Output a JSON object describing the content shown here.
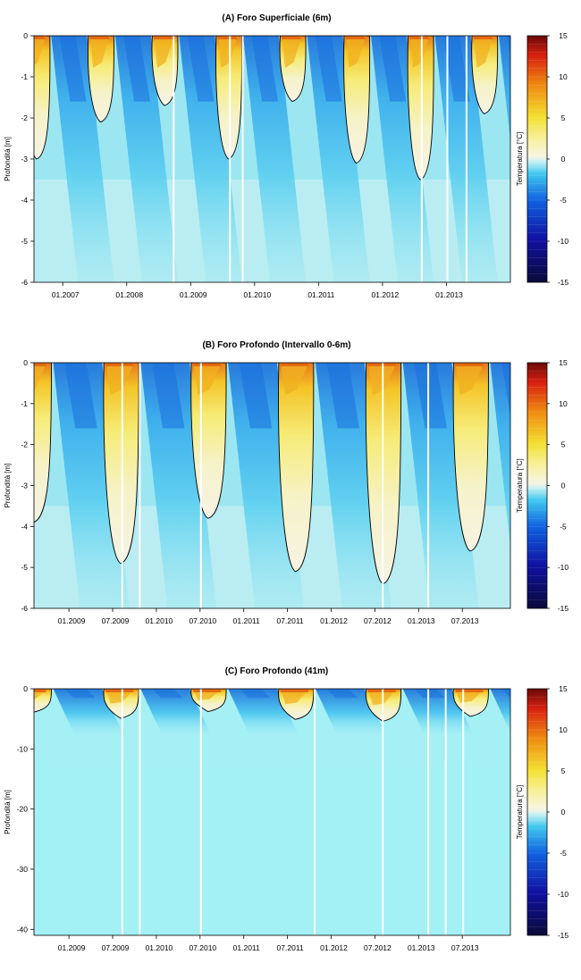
{
  "colorbar": {
    "label": "Temperatura [°C]",
    "ticks": [
      15,
      10,
      5,
      0,
      -5,
      -10,
      -15
    ],
    "min": -15,
    "max": 15,
    "step": 1
  },
  "chart_data": [
    {
      "type": "heatmap",
      "title": "(A) Foro Superficiale (6m)",
      "ylabel": "Profondità [m]",
      "xlabel": "",
      "ylim": [
        -6,
        0
      ],
      "xlim": [
        2006.55,
        2014.0
      ],
      "yticks": [
        "0",
        "-1",
        "-2",
        "-3",
        "-4",
        "-5",
        "-6"
      ],
      "ytick_values": [
        0,
        -1,
        -2,
        -3,
        -4,
        -5,
        -6
      ],
      "xticks": [
        "01.2007",
        "01.2008",
        "01.2009",
        "01.2010",
        "01.2011",
        "01.2012",
        "01.2013"
      ],
      "xtick_values": [
        2007.0,
        2008.0,
        2009.0,
        2010.0,
        2011.0,
        2012.0,
        2013.0
      ],
      "colorbar_label": "Temperatura [°C]",
      "colorbar_range": [
        -15,
        15
      ],
      "summer_zero_isotherm_max_depth_m": [
        {
          "summer": 2006,
          "depth": -3.0
        },
        {
          "summer": 2007,
          "depth": -2.1
        },
        {
          "summer": 2008,
          "depth": -1.7
        },
        {
          "summer": 2009,
          "depth": -3.0
        },
        {
          "summer": 2010,
          "depth": -1.6
        },
        {
          "summer": 2011,
          "depth": -3.1
        },
        {
          "summer": 2012,
          "depth": -3.5
        },
        {
          "summer": 2013,
          "depth": -1.9
        }
      ],
      "data_gaps": [
        2008.72,
        2009.6,
        2009.8,
        2012.6,
        2013.0,
        2013.3
      ]
    },
    {
      "type": "heatmap",
      "title": "(B) Foro Profondo (Intervallo 0-6m)",
      "ylabel": "Profondità [m]",
      "xlabel": "",
      "ylim": [
        -6,
        0
      ],
      "xlim": [
        2008.6,
        2014.05
      ],
      "yticks": [
        "0",
        "-1",
        "-2",
        "-3",
        "-4",
        "-5",
        "-6"
      ],
      "ytick_values": [
        0,
        -1,
        -2,
        -3,
        -4,
        -5,
        -6
      ],
      "xticks": [
        "01.2009",
        "07.2009",
        "01.2010",
        "07.2010",
        "01.2011",
        "07.2011",
        "01.2012",
        "07.2012",
        "01.2013",
        "07.2013"
      ],
      "xtick_values": [
        2009.0,
        2009.5,
        2010.0,
        2010.5,
        2011.0,
        2011.5,
        2012.0,
        2012.5,
        2013.0,
        2013.5
      ],
      "colorbar_label": "Temperatura [°C]",
      "colorbar_range": [
        -15,
        15
      ],
      "summer_zero_isotherm_max_depth_m": [
        {
          "summer": 2008,
          "depth": -3.9
        },
        {
          "summer": 2009,
          "depth": -4.9
        },
        {
          "summer": 2010,
          "depth": -3.8
        },
        {
          "summer": 2011,
          "depth": -5.1
        },
        {
          "summer": 2012,
          "depth": -5.4
        },
        {
          "summer": 2013,
          "depth": -4.6
        }
      ],
      "data_gaps": [
        2009.6,
        2009.8,
        2010.5,
        2012.58,
        2013.1
      ]
    },
    {
      "type": "heatmap",
      "title": "(C) Foro Profondo (41m)",
      "ylabel": "Profondità [m]",
      "xlabel": "",
      "ylim": [
        -41,
        0
      ],
      "xlim": [
        2008.6,
        2014.05
      ],
      "yticks": [
        "0",
        "-10",
        "-20",
        "-30",
        "-40"
      ],
      "ytick_values": [
        0,
        -10,
        -20,
        -30,
        -40
      ],
      "xticks": [
        "01.2009",
        "07.2009",
        "01.2010",
        "07.2010",
        "01.2011",
        "07.2011",
        "01.2012",
        "07.2012",
        "01.2013",
        "07.2013"
      ],
      "xtick_values": [
        2009.0,
        2009.5,
        2010.0,
        2010.5,
        2011.0,
        2011.5,
        2012.0,
        2012.5,
        2013.0,
        2013.5
      ],
      "colorbar_label": "Temperatura [°C]",
      "colorbar_range": [
        -15,
        15
      ],
      "summer_zero_isotherm_max_depth_m": [
        {
          "summer": 2008,
          "depth": -3.9
        },
        {
          "summer": 2009,
          "depth": -4.9
        },
        {
          "summer": 2010,
          "depth": -3.8
        },
        {
          "summer": 2011,
          "depth": -5.1
        },
        {
          "summer": 2012,
          "depth": -5.4
        },
        {
          "summer": 2013,
          "depth": -4.6
        }
      ],
      "data_gaps": [
        2009.6,
        2009.8,
        2010.5,
        2011.8,
        2012.58,
        2013.1,
        2013.3,
        2013.5
      ]
    }
  ]
}
